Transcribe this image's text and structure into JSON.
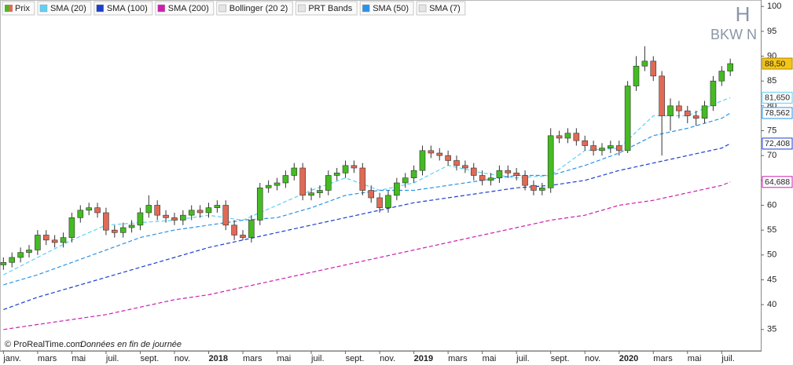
{
  "chart_data": {
    "type": "candlestick",
    "title": "H",
    "subtitle": "BKW N",
    "footer": "© ProRealTime.com",
    "footer_note": "Données en fin de journée",
    "legend": [
      {
        "name": "Prix",
        "color": "#44bb22"
      },
      {
        "name": "SMA (20)",
        "color": "#5fd0f5"
      },
      {
        "name": "SMA (100)",
        "color": "#1a3fcc"
      },
      {
        "name": "SMA (200)",
        "color": "#cc1fae"
      },
      {
        "name": "Bollinger (20 2)",
        "color": "#e4e4e4"
      },
      {
        "name": "PRT Bands",
        "color": "#e4e4e4"
      },
      {
        "name": "SMA (50)",
        "color": "#2a92e8"
      },
      {
        "name": "SMA (7)",
        "color": "#e4e4e4"
      }
    ],
    "xlim": [
      -0.2,
      44.1
    ],
    "xticks": [
      {
        "value": 0,
        "label": "janv."
      },
      {
        "value": 2,
        "label": "mars"
      },
      {
        "value": 4,
        "label": "mai"
      },
      {
        "value": 6,
        "label": "juil."
      },
      {
        "value": 8,
        "label": "sept."
      },
      {
        "value": 10,
        "label": "nov."
      },
      {
        "value": 12,
        "label": "2018"
      },
      {
        "value": 14,
        "label": "mars"
      },
      {
        "value": 16,
        "label": "mai"
      },
      {
        "value": 18,
        "label": "juil."
      },
      {
        "value": 20,
        "label": "sept."
      },
      {
        "value": 22,
        "label": "nov."
      },
      {
        "value": 24,
        "label": "2019"
      },
      {
        "value": 26,
        "label": "mars"
      },
      {
        "value": 28,
        "label": "mai"
      },
      {
        "value": 30,
        "label": "juil."
      },
      {
        "value": 32,
        "label": "sept."
      },
      {
        "value": 34,
        "label": "nov."
      },
      {
        "value": 36,
        "label": "2020"
      },
      {
        "value": 38,
        "label": "mars"
      },
      {
        "value": 40,
        "label": "mai"
      },
      {
        "value": 42,
        "label": "juil."
      }
    ],
    "ylim": [
      30.7,
      101.3
    ],
    "yticks": [
      100,
      95,
      90,
      85,
      80,
      75,
      70,
      65,
      60,
      55,
      50,
      45,
      40,
      35
    ],
    "candles": {
      "up_color": "#44bb22",
      "down_color": "#e06a55",
      "last_label": "88,50",
      "x": [
        0,
        0.5,
        1,
        1.5,
        2,
        2.5,
        3,
        3.5,
        4,
        4.5,
        5,
        5.5,
        6,
        6.5,
        7,
        7.5,
        8,
        8.5,
        9,
        9.5,
        10,
        10.5,
        11,
        11.5,
        12,
        12.5,
        13,
        13.5,
        14,
        14.5,
        15,
        15.5,
        16,
        16.5,
        17,
        17.5,
        18,
        18.5,
        19,
        19.5,
        20,
        20.5,
        21,
        21.5,
        22,
        22.5,
        23,
        23.5,
        24,
        24.5,
        25,
        25.5,
        26,
        26.5,
        27,
        27.5,
        28,
        28.5,
        29,
        29.5,
        30,
        30.5,
        31,
        31.5,
        32,
        32.5,
        33,
        33.5,
        34,
        34.5,
        35,
        35.5,
        36,
        36.5,
        37,
        37.5,
        38,
        38.5,
        39,
        39.5,
        40,
        40.5,
        41,
        41.5,
        42,
        42.5
      ],
      "open": [
        48,
        48.5,
        49.5,
        50.5,
        51,
        54,
        53,
        52.5,
        53.5,
        57.5,
        59,
        59.5,
        58.5,
        55,
        54.5,
        55.5,
        56,
        58.5,
        60,
        58,
        57.5,
        57,
        58,
        59,
        58.5,
        59.5,
        60,
        56,
        54,
        53.5,
        57,
        63.5,
        64,
        64.5,
        66,
        67.5,
        62,
        62.5,
        63,
        66,
        66.5,
        68,
        67.5,
        63,
        61.5,
        59.5,
        62,
        64.5,
        65.5,
        67,
        71,
        70.5,
        70,
        69,
        68,
        67.5,
        66,
        65,
        65.5,
        67,
        66.5,
        66,
        64,
        63,
        63.5,
        74,
        73.5,
        74.5,
        73,
        72,
        71,
        71.5,
        72,
        71,
        84,
        88,
        89,
        86,
        78,
        80,
        79,
        78,
        77.5,
        80,
        85,
        87
      ],
      "high": [
        49.5,
        50.5,
        51.5,
        52,
        55,
        55,
        54,
        54.5,
        58.5,
        60,
        60.5,
        60.5,
        59.5,
        56,
        56.5,
        57,
        59.5,
        62,
        61,
        59,
        58.5,
        59,
        60,
        60,
        60.5,
        61,
        61,
        57,
        55,
        58,
        64.5,
        65,
        65.5,
        67,
        68.5,
        68.5,
        63.5,
        64,
        67,
        67.5,
        69,
        69,
        68.5,
        64,
        62.5,
        63,
        65.5,
        66.5,
        68,
        72,
        72,
        71.5,
        71,
        70,
        69,
        68.5,
        67,
        66.5,
        68,
        68,
        67.5,
        67,
        65,
        64.5,
        75.5,
        75,
        75.5,
        75.5,
        74,
        73,
        72.5,
        73,
        73,
        85,
        90,
        92,
        90,
        87,
        81.5,
        81,
        80,
        79,
        81,
        86,
        88,
        89.5
      ],
      "low": [
        47,
        47.5,
        48.5,
        49.5,
        50,
        52,
        51.5,
        51.5,
        52.5,
        56.5,
        58,
        57.5,
        54,
        53.5,
        53.5,
        54.5,
        55,
        57.5,
        57,
        56.5,
        56,
        56,
        57,
        57.5,
        57.5,
        58.5,
        55,
        53,
        53,
        52.5,
        56,
        62.5,
        63,
        63.5,
        65,
        61,
        61,
        61.5,
        62,
        65,
        65.5,
        66.5,
        62,
        60.5,
        58.5,
        58.5,
        61,
        63.5,
        64.5,
        66,
        69.5,
        69,
        68,
        67,
        66.5,
        65,
        64,
        64,
        64.5,
        65.5,
        65,
        63,
        62,
        62,
        62.5,
        72.5,
        72.5,
        72,
        71,
        70,
        70,
        70.5,
        70,
        70.5,
        83,
        87,
        85,
        70,
        75,
        77.5,
        76.5,
        76,
        76.5,
        79,
        84,
        86
      ],
      "close": [
        48.5,
        49.5,
        50.5,
        51,
        54,
        53,
        52.5,
        53.5,
        57.5,
        59,
        59.5,
        58.5,
        55,
        54.5,
        55.5,
        56,
        58.5,
        60,
        58,
        57.5,
        57,
        58,
        59,
        58.5,
        59.5,
        60,
        56,
        54,
        53.5,
        57,
        63.5,
        64,
        64.5,
        66,
        67.5,
        62,
        62.5,
        63,
        66,
        66.5,
        68,
        67.5,
        63,
        61.5,
        59.5,
        62,
        64.5,
        65.5,
        67,
        71,
        70.5,
        70,
        69,
        68,
        67.5,
        66,
        65,
        65.5,
        67,
        66.5,
        66,
        64,
        63,
        63.5,
        74,
        73.5,
        74.5,
        73,
        72,
        71,
        71.5,
        72,
        71,
        84,
        88,
        89,
        86,
        78,
        80,
        79,
        78,
        77.5,
        80,
        85,
        87,
        88.5
      ]
    },
    "series": [
      {
        "color": "#5fd0f5",
        "x": [
          0,
          2,
          4,
          6,
          8,
          10,
          12,
          14,
          16,
          18,
          20,
          22,
          24,
          26,
          28,
          30,
          32,
          34,
          36,
          38,
          40,
          42,
          42.5
        ],
        "values": [
          46,
          49.5,
          53,
          56,
          56.5,
          57,
          58,
          57,
          60,
          63,
          65.5,
          63,
          64.5,
          68,
          66.5,
          65.5,
          66,
          71,
          71.5,
          78,
          78,
          81,
          81.65
        ],
        "value_labels": [
          null,
          null,
          null,
          null,
          null,
          null,
          null,
          null,
          null,
          null,
          null,
          null,
          null,
          null,
          null,
          null,
          null,
          null,
          null,
          null,
          null,
          null,
          "81,650"
        ]
      },
      {
        "color": "#2a92e8",
        "x": [
          0,
          2,
          4,
          6,
          8,
          10,
          12,
          14,
          16,
          18,
          20,
          22,
          24,
          26,
          28,
          30,
          32,
          34,
          36,
          38,
          40,
          42,
          42.5
        ],
        "values": [
          44,
          46,
          48.5,
          51,
          53.5,
          55,
          56,
          57,
          57.5,
          59.5,
          62,
          63,
          63,
          64,
          65,
          66,
          66,
          68,
          70.5,
          74,
          75.5,
          77.5,
          78.562
        ],
        "value_labels": [
          null,
          null,
          null,
          null,
          null,
          null,
          null,
          null,
          null,
          null,
          null,
          null,
          null,
          null,
          null,
          null,
          null,
          null,
          null,
          null,
          null,
          null,
          "78,562"
        ]
      },
      {
        "color": "#1a3fcc",
        "x": [
          0,
          2,
          4,
          6,
          8,
          10,
          12,
          14,
          16,
          18,
          20,
          22,
          24,
          26,
          28,
          30,
          32,
          34,
          36,
          38,
          40,
          42,
          42.5
        ],
        "values": [
          39,
          41.5,
          43.5,
          45.5,
          47.5,
          49.5,
          51.5,
          53,
          54.5,
          56,
          57.5,
          59,
          60.5,
          61.5,
          62.5,
          63.5,
          64,
          65,
          67,
          68.5,
          70,
          71.5,
          72.408
        ],
        "value_labels": [
          null,
          null,
          null,
          null,
          null,
          null,
          null,
          null,
          null,
          null,
          null,
          null,
          null,
          null,
          null,
          null,
          null,
          null,
          null,
          null,
          null,
          null,
          "72,408"
        ]
      },
      {
        "color": "#cc1fae",
        "x": [
          0,
          2,
          4,
          6,
          8,
          10,
          12,
          14,
          16,
          18,
          20,
          22,
          24,
          26,
          28,
          30,
          32,
          34,
          36,
          38,
          40,
          42,
          42.5
        ],
        "values": [
          35,
          36,
          37,
          38,
          39.5,
          41,
          42,
          43.5,
          45,
          46.5,
          48,
          49.5,
          51,
          52.5,
          54,
          55.5,
          57,
          58,
          60,
          61,
          62.5,
          64,
          64.688
        ],
        "value_labels": [
          null,
          null,
          null,
          null,
          null,
          null,
          null,
          null,
          null,
          null,
          null,
          null,
          null,
          null,
          null,
          null,
          null,
          null,
          null,
          null,
          null,
          null,
          "64,688"
        ]
      }
    ]
  }
}
